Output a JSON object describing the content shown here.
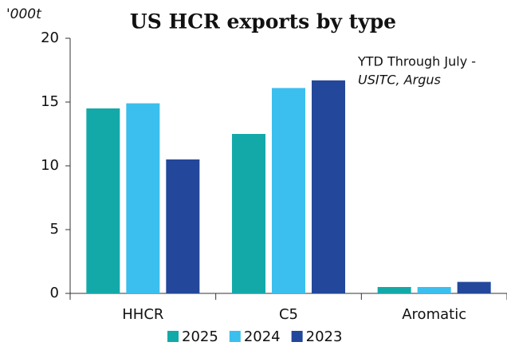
{
  "chart_data": {
    "type": "bar",
    "title": "US HCR exports by type",
    "y_label": "'000t",
    "annotations": [
      "YTD Through July -",
      "USITC, Argus"
    ],
    "categories": [
      "HHCR",
      "C5",
      "Aromatic"
    ],
    "series": [
      {
        "name": "2025",
        "color": "#14a9a9",
        "values": [
          14.5,
          12.5,
          0.5
        ]
      },
      {
        "name": "2024",
        "color": "#3bbfee",
        "values": [
          14.9,
          16.1,
          0.5
        ]
      },
      {
        "name": "2023",
        "color": "#23479a",
        "values": [
          10.5,
          16.7,
          0.9
        ]
      }
    ],
    "ylim": [
      0,
      20
    ],
    "yticks": [
      0,
      5,
      10,
      15,
      20
    ]
  }
}
